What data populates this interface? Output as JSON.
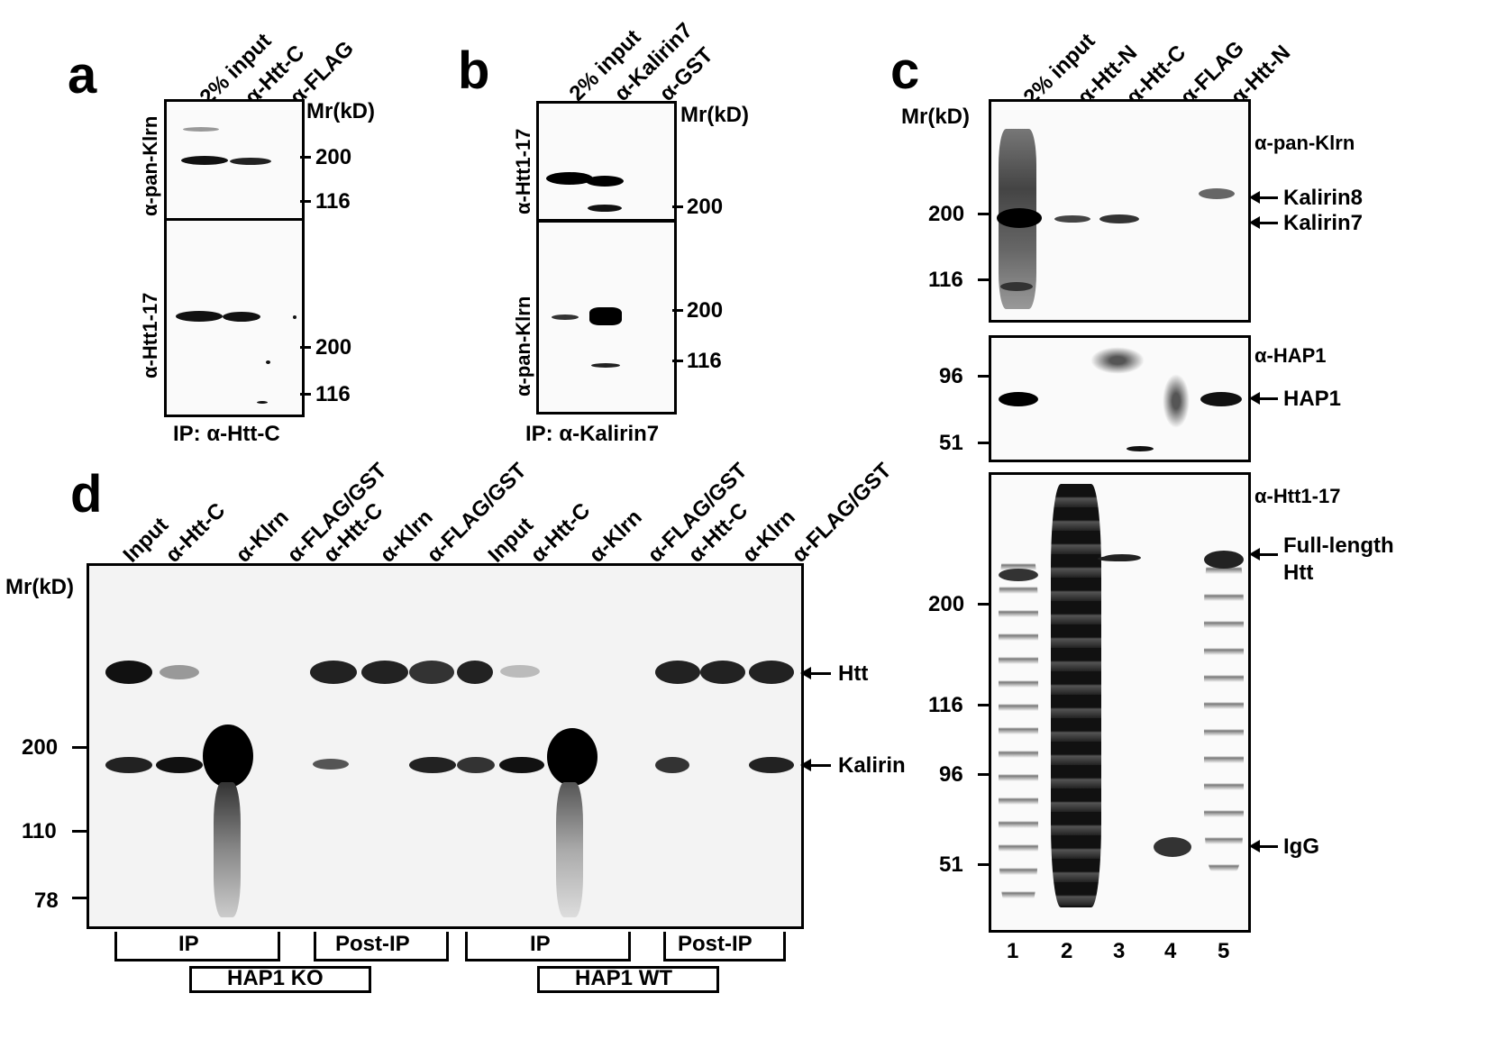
{
  "panel_a": {
    "letter": "a",
    "lanes": [
      "2% input",
      "α-Htt-C",
      "α-FLAG"
    ],
    "mr_header": "Mr(kD)",
    "top_blot_label": "α-pan-Klrn",
    "top_markers": [
      "200",
      "116"
    ],
    "bottom_blot_label": "α-Htt1-17",
    "bottom_markers": [
      "200",
      "116"
    ],
    "ip_label": "IP: α-Htt-C"
  },
  "panel_b": {
    "letter": "b",
    "lanes": [
      "2% input",
      "α-Kalirin7",
      "α-GST"
    ],
    "mr_header": "Mr(kD)",
    "top_blot_label": "α-Htt1-17",
    "top_markers": [
      "200"
    ],
    "bottom_blot_label": "α-pan-Klrn",
    "bottom_markers": [
      "200",
      "116"
    ],
    "ip_label": "IP: α-Kalirin7"
  },
  "panel_c": {
    "letter": "c",
    "lanes": [
      "2% input",
      "α-Htt-N",
      "α-Htt-C",
      "α-FLAG",
      "α-Htt-N"
    ],
    "mr_header": "Mr(kD)",
    "blot1": {
      "antibody": "α-pan-Klrn",
      "markers": [
        "200",
        "116"
      ],
      "bands": [
        "Kalirin8",
        "Kalirin7"
      ]
    },
    "blot2": {
      "antibody": "α-HAP1",
      "markers": [
        "96",
        "51"
      ],
      "bands": [
        "HAP1"
      ]
    },
    "blot3": {
      "antibody": "α-Htt1-17",
      "markers": [
        "200",
        "116",
        "96",
        "51"
      ],
      "bands": [
        "Full-length",
        "Htt",
        "IgG"
      ]
    },
    "lane_numbers": [
      "1",
      "2",
      "3",
      "4",
      "5"
    ]
  },
  "panel_d": {
    "letter": "d",
    "lanes": [
      "Input",
      "α-Htt-C",
      "α-Klrn",
      "α-FLAG/GST",
      "α-Htt-C",
      "α-Klrn",
      "α-FLAG/GST",
      "Input",
      "α-Htt-C",
      "α-Klrn",
      "α-FLAG/GST",
      "α-Htt-C",
      "α-Klrn",
      "α-FLAG/GST"
    ],
    "mr_header": "Mr(kD)",
    "markers": [
      "200",
      "110",
      "78"
    ],
    "bands": [
      "Htt",
      "Kalirin"
    ],
    "groups": [
      "IP",
      "Post-IP",
      "IP",
      "Post-IP"
    ],
    "conditions": [
      "HAP1 KO",
      "HAP1 WT"
    ]
  }
}
